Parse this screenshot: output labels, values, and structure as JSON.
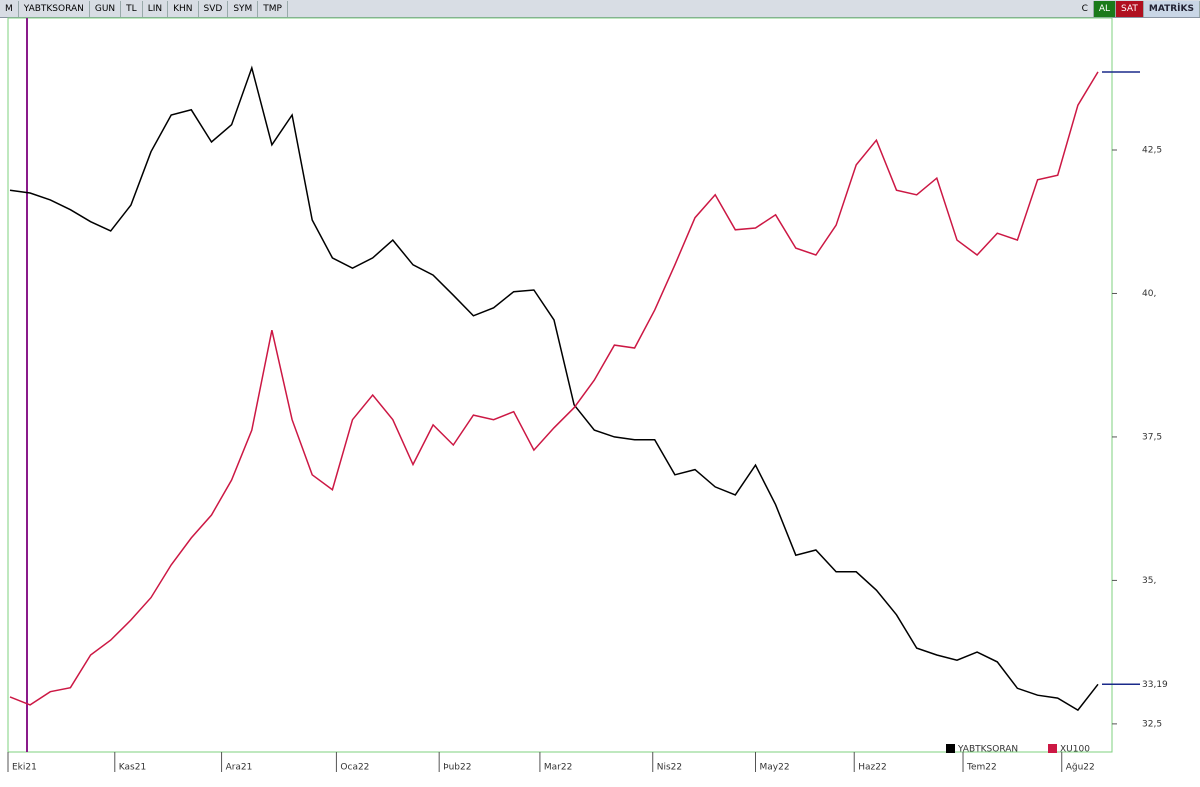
{
  "toolbar": {
    "left": [
      "M",
      "YABTKSORAN",
      "GUN",
      "TL",
      "LIN",
      "KHN",
      "SVD",
      "SYM",
      "TMP"
    ],
    "right": [
      "C",
      "AL",
      "SAT",
      "MATRİKS"
    ]
  },
  "chart_data": {
    "type": "line",
    "x": [
      0,
      1,
      2,
      3,
      4,
      5,
      6,
      7,
      8,
      9,
      10,
      11,
      12,
      13,
      14,
      15,
      16,
      17,
      18,
      19,
      20,
      21,
      22,
      23,
      24,
      25,
      26,
      27,
      28,
      29,
      30,
      31,
      32,
      33,
      34,
      35,
      36,
      37,
      38,
      39,
      40,
      41,
      42,
      43,
      44,
      45,
      46,
      47,
      48,
      49,
      50,
      51,
      52,
      53,
      54
    ],
    "xlim": [
      0,
      54
    ],
    "xticks": [
      {
        "value": 0,
        "label": "Eki21"
      },
      {
        "value": 5.3,
        "label": "Kas21"
      },
      {
        "value": 10.6,
        "label": "Ara21"
      },
      {
        "value": 16.3,
        "label": "Oca22"
      },
      {
        "value": 21.4,
        "label": "Þub22"
      },
      {
        "value": 26.4,
        "label": "Mar22"
      },
      {
        "value": 32.0,
        "label": "Nis22"
      },
      {
        "value": 37.1,
        "label": "May22"
      },
      {
        "value": 42.0,
        "label": "Haz22"
      },
      {
        "value": 47.4,
        "label": "Tem22"
      },
      {
        "value": 52.3,
        "label": "Ağu22"
      }
    ],
    "ylim": [
      32.01,
      44.8
    ],
    "yticks": [
      {
        "value": 42.5,
        "label": "42,5"
      },
      {
        "value": 40,
        "label": "40,"
      },
      {
        "value": 37.5,
        "label": "37,5"
      },
      {
        "value": 35,
        "label": "35,"
      },
      {
        "value": 32.5,
        "label": "32,5"
      }
    ],
    "series": [
      {
        "name": "YABTKSORAN",
        "color": "#000000",
        "values": [
          41.8,
          41.75,
          41.63,
          41.46,
          41.25,
          41.09,
          41.54,
          42.47,
          43.11,
          43.2,
          42.64,
          42.94,
          43.93,
          42.59,
          43.11,
          41.28,
          40.62,
          40.44,
          40.62,
          40.93,
          40.5,
          40.32,
          39.97,
          39.61,
          39.75,
          40.03,
          40.06,
          39.54,
          38.06,
          37.62,
          37.5,
          37.45,
          37.45,
          36.84,
          36.93,
          36.63,
          36.49,
          37.01,
          36.32,
          35.44,
          35.53,
          35.15,
          35.15,
          34.83,
          34.4,
          33.82,
          33.7,
          33.61,
          33.75,
          33.58,
          33.12,
          33.0,
          32.95,
          32.74,
          33.19
        ],
        "value_labels": [
          null,
          null,
          null,
          null,
          null,
          null,
          null,
          null,
          null,
          null,
          null,
          null,
          null,
          null,
          null,
          null,
          null,
          null,
          null,
          null,
          null,
          null,
          null,
          null,
          null,
          null,
          null,
          null,
          null,
          null,
          null,
          null,
          null,
          null,
          null,
          null,
          null,
          null,
          null,
          null,
          null,
          null,
          null,
          null,
          null,
          null,
          null,
          null,
          null,
          null,
          null,
          null,
          null,
          null,
          "33,19"
        ]
      },
      {
        "name": "XU100",
        "color": "#cc1844",
        "values": [
          32.97,
          32.83,
          33.06,
          33.13,
          33.7,
          33.96,
          34.31,
          34.7,
          35.27,
          35.74,
          36.14,
          36.75,
          37.62,
          39.36,
          37.8,
          36.84,
          36.58,
          37.8,
          38.23,
          37.8,
          37.02,
          37.71,
          37.36,
          37.88,
          37.8,
          37.94,
          37.27,
          37.66,
          38.01,
          38.49,
          39.1,
          39.05,
          39.71,
          40.5,
          41.32,
          41.72,
          41.11,
          41.14,
          41.37,
          40.79,
          40.67,
          41.19,
          42.24,
          42.67,
          41.8,
          41.72,
          42.01,
          40.93,
          40.67,
          41.05,
          40.93,
          41.98,
          42.06,
          43.28,
          43.86
        ]
      }
    ]
  }
}
